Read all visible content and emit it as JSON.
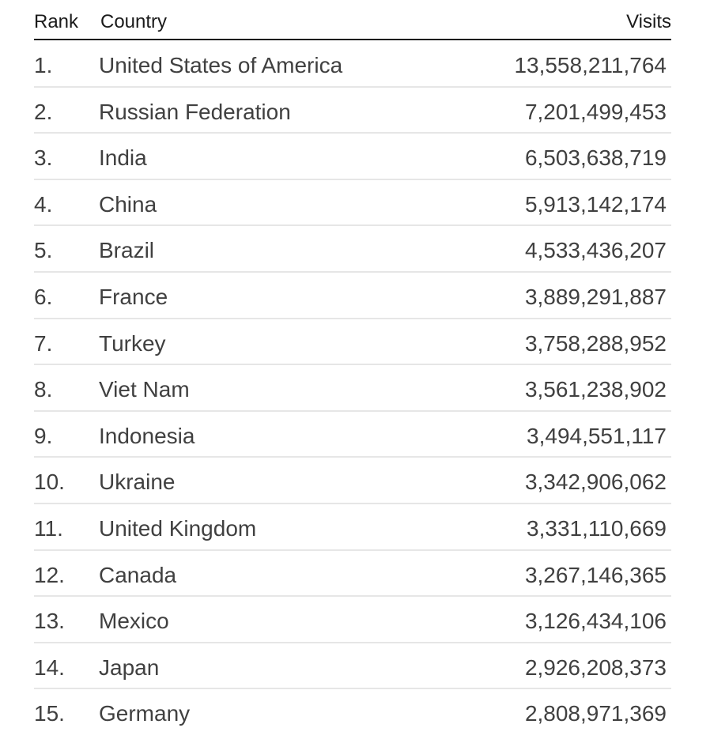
{
  "header": {
    "rank_label": "Rank",
    "country_label": "Country",
    "visits_label": "Visits"
  },
  "rows": [
    {
      "rank": "1.",
      "country": "United States of America",
      "visits": "13,558,211,764"
    },
    {
      "rank": "2.",
      "country": "Russian Federation",
      "visits": "7,201,499,453"
    },
    {
      "rank": "3.",
      "country": "India",
      "visits": "6,503,638,719"
    },
    {
      "rank": "4.",
      "country": "China",
      "visits": "5,913,142,174"
    },
    {
      "rank": "5.",
      "country": "Brazil",
      "visits": "4,533,436,207"
    },
    {
      "rank": "6.",
      "country": "France",
      "visits": "3,889,291,887"
    },
    {
      "rank": "7.",
      "country": "Turkey",
      "visits": "3,758,288,952"
    },
    {
      "rank": "8.",
      "country": "Viet Nam",
      "visits": "3,561,238,902"
    },
    {
      "rank": "9.",
      "country": "Indonesia",
      "visits": "3,494,551,117"
    },
    {
      "rank": "10.",
      "country": "Ukraine",
      "visits": "3,342,906,062"
    },
    {
      "rank": "11.",
      "country": "United Kingdom",
      "visits": "3,331,110,669"
    },
    {
      "rank": "12.",
      "country": "Canada",
      "visits": "3,267,146,365"
    },
    {
      "rank": "13.",
      "country": "Mexico",
      "visits": "3,126,434,106"
    },
    {
      "rank": "14.",
      "country": "Japan",
      "visits": "2,926,208,373"
    },
    {
      "rank": "15.",
      "country": "Germany",
      "visits": "2,808,971,369"
    }
  ]
}
